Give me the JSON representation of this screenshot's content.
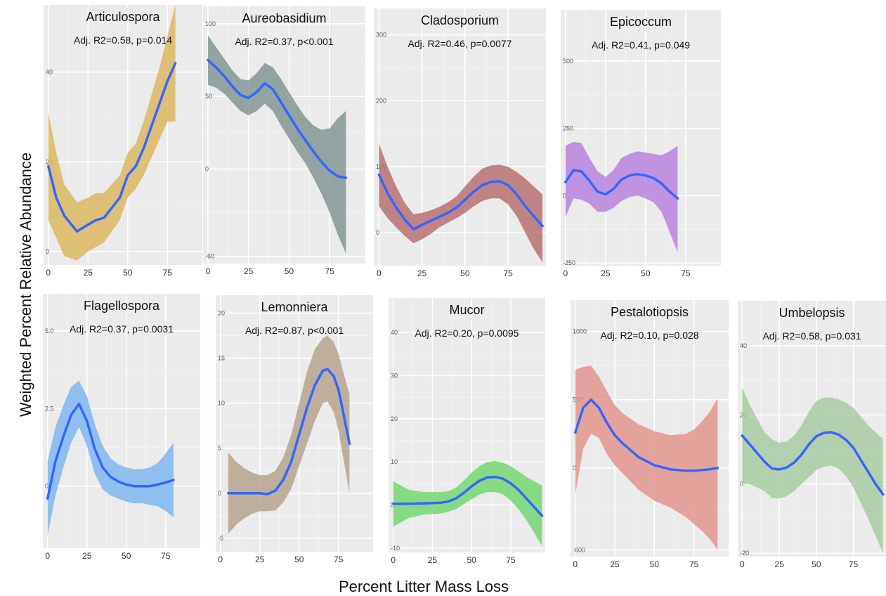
{
  "figure": {
    "ylabel": "Weighted Percent Relative Abundance",
    "xlabel": "Percent Litter Mass Loss"
  },
  "chart_data": [
    {
      "type": "line",
      "title": "Articulospora",
      "annotation": "Adj. R2=0.58, p=0.014",
      "color": "#d9b45c",
      "xlim": [
        -3,
        97
      ],
      "ylim": [
        -3,
        55
      ],
      "xticks": [
        0,
        25,
        50,
        75
      ],
      "yticks": [
        0,
        20,
        40
      ],
      "x": [
        0,
        5,
        10,
        18,
        25,
        30,
        35,
        45,
        50,
        55,
        60,
        65,
        70,
        75,
        80
      ],
      "y": [
        19,
        12,
        8,
        4.5,
        6,
        7,
        7.5,
        12,
        17,
        19,
        23,
        28,
        33,
        38,
        42
      ],
      "band_upper": [
        31,
        22,
        15,
        11,
        12,
        13,
        13,
        17,
        22,
        24,
        29,
        35,
        41,
        48,
        55
      ],
      "band_lower": [
        7,
        3,
        -1,
        -2,
        0,
        1,
        2,
        7,
        12,
        14,
        17,
        21,
        25,
        29,
        29
      ]
    },
    {
      "type": "line",
      "title": "Aureobasidium",
      "annotation": "Adj. R2=0.37, p<0.001",
      "color": "#7e9391",
      "xlim": [
        -3,
        97
      ],
      "ylim": [
        -65,
        112
      ],
      "xticks": [
        0,
        25,
        50,
        75
      ],
      "yticks": [
        -60,
        0,
        50,
        100
      ],
      "x": [
        0,
        5,
        10,
        15,
        20,
        25,
        30,
        35,
        40,
        45,
        50,
        55,
        60,
        65,
        70,
        75,
        80,
        85
      ],
      "y": [
        75,
        70,
        64,
        57,
        51,
        49,
        53,
        59,
        55,
        46,
        37,
        28,
        20,
        12,
        5,
        -1,
        -5,
        -6
      ],
      "band_upper": [
        92,
        84,
        76,
        68,
        62,
        61,
        66,
        73,
        70,
        62,
        53,
        44,
        36,
        30,
        27,
        28,
        35,
        40
      ],
      "band_lower": [
        58,
        56,
        52,
        46,
        40,
        37,
        40,
        45,
        40,
        30,
        21,
        12,
        4,
        -6,
        -17,
        -30,
        -45,
        -58
      ]
    },
    {
      "type": "line",
      "title": "Cladosporium",
      "annotation": "Adj. R2=0.46, p=0.0077",
      "color": "#b66b6b",
      "xlim": [
        -3,
        97
      ],
      "ylim": [
        -50,
        340
      ],
      "xticks": [
        0,
        25,
        50,
        75
      ],
      "yticks": [
        0,
        100,
        200,
        300
      ],
      "x": [
        0,
        5,
        10,
        15,
        20,
        25,
        30,
        35,
        40,
        45,
        50,
        55,
        60,
        65,
        70,
        75,
        80,
        85,
        90,
        95
      ],
      "y": [
        88,
        60,
        38,
        20,
        5,
        12,
        18,
        24,
        30,
        38,
        50,
        62,
        72,
        77,
        78,
        72,
        58,
        40,
        25,
        10
      ],
      "band_upper": [
        135,
        100,
        70,
        45,
        28,
        30,
        34,
        39,
        46,
        55,
        70,
        85,
        97,
        102,
        103,
        100,
        92,
        82,
        70,
        58
      ],
      "band_lower": [
        40,
        22,
        8,
        -5,
        -16,
        -10,
        -2,
        8,
        15,
        22,
        30,
        40,
        48,
        52,
        52,
        43,
        25,
        0,
        -25,
        -45
      ]
    },
    {
      "type": "line",
      "title": "Epicoccum",
      "annotation": "Adj. R2=0.41, p=0.049",
      "color": "#b67fde",
      "xlim": [
        -3,
        97
      ],
      "ylim": [
        -260,
        690
      ],
      "xticks": [
        0,
        25,
        50,
        75
      ],
      "yticks": [
        -250,
        0,
        250,
        500
      ],
      "x": [
        0,
        5,
        10,
        15,
        20,
        25,
        30,
        35,
        40,
        45,
        50,
        55,
        60,
        65,
        70
      ],
      "y": [
        50,
        95,
        90,
        55,
        15,
        5,
        25,
        60,
        75,
        80,
        75,
        65,
        45,
        15,
        -10
      ],
      "band_upper": [
        185,
        200,
        195,
        140,
        90,
        70,
        95,
        140,
        155,
        165,
        160,
        155,
        150,
        165,
        185
      ],
      "band_lower": [
        -80,
        -10,
        -15,
        -30,
        -60,
        -60,
        -45,
        -20,
        -5,
        0,
        -10,
        -25,
        -60,
        -135,
        -210
      ]
    },
    {
      "type": "line",
      "title": "Flagellospora",
      "annotation": "Adj. R2=0.37, p=0.0031",
      "color": "#7ab4ef",
      "xlim": [
        -3,
        97
      ],
      "ylim": [
        -2,
        6.2
      ],
      "xticks": [
        0,
        25,
        50,
        75
      ],
      "yticks": [
        0.0,
        2.5,
        5.0
      ],
      "yticklabels": [
        "0.0",
        "2.5",
        "5.0"
      ],
      "x": [
        0,
        5,
        10,
        15,
        20,
        25,
        30,
        35,
        40,
        45,
        50,
        55,
        60,
        65,
        70,
        75,
        80
      ],
      "y": [
        -0.4,
        0.8,
        1.6,
        2.3,
        2.65,
        2.1,
        1.2,
        0.6,
        0.3,
        0.15,
        0.05,
        0.0,
        0.0,
        0.0,
        0.05,
        0.12,
        0.2
      ],
      "band_upper": [
        0.8,
        1.9,
        2.6,
        3.2,
        3.4,
        2.9,
        2.0,
        1.3,
        0.9,
        0.7,
        0.6,
        0.55,
        0.55,
        0.6,
        0.75,
        1.05,
        1.4
      ],
      "band_lower": [
        -1.6,
        -0.3,
        0.6,
        1.4,
        1.9,
        1.3,
        0.4,
        -0.1,
        -0.3,
        -0.4,
        -0.5,
        -0.55,
        -0.55,
        -0.6,
        -0.65,
        -0.8,
        -1.0
      ]
    },
    {
      "type": "line",
      "title": "Lemonniera",
      "annotation": "Adj. R2=0.87, p<0.001",
      "color": "#b3a08a",
      "xlim": [
        -3,
        97
      ],
      "ylim": [
        -6.5,
        22
      ],
      "xticks": [
        0,
        25,
        50,
        75
      ],
      "yticks": [
        -5,
        0,
        5,
        10,
        15,
        20
      ],
      "x": [
        5,
        10,
        15,
        20,
        25,
        30,
        35,
        40,
        45,
        50,
        55,
        60,
        65,
        68,
        72,
        75,
        78,
        82
      ],
      "y": [
        0,
        0,
        0,
        0,
        0,
        -0.1,
        0.3,
        1.5,
        3.5,
        6.5,
        9.5,
        12,
        13.6,
        13.8,
        13,
        11.5,
        9,
        5.5
      ],
      "band_upper": [
        4.5,
        3.5,
        2.8,
        2.3,
        2,
        2,
        2.5,
        4,
        6.5,
        10,
        13.5,
        16,
        17.2,
        17.5,
        16.8,
        15.5,
        13.5,
        11
      ],
      "band_lower": [
        -4.5,
        -3.5,
        -2.8,
        -2.3,
        -2,
        -2,
        -1.9,
        -1,
        0.5,
        3,
        5.5,
        8,
        10,
        10.2,
        9,
        7,
        4,
        0
      ]
    },
    {
      "type": "line",
      "title": "Mucor",
      "annotation": "Adj. R2=0.20, p=0.0095",
      "color": "#6fd66c",
      "xlim": [
        -3,
        97
      ],
      "ylim": [
        -11,
        48
      ],
      "xticks": [
        0,
        25,
        50,
        75
      ],
      "yticks": [
        -10,
        0,
        10,
        20,
        30,
        40
      ],
      "x": [
        0,
        10,
        20,
        30,
        35,
        40,
        45,
        50,
        55,
        60,
        65,
        70,
        75,
        80,
        85,
        90,
        95
      ],
      "y": [
        0.3,
        0.3,
        0.4,
        0.5,
        0.8,
        1.5,
        2.8,
        4.3,
        5.6,
        6.4,
        6.5,
        6.1,
        5,
        3.5,
        1.5,
        -0.5,
        -2.5
      ],
      "band_upper": [
        5.5,
        3.5,
        3,
        3,
        3.2,
        4,
        5.6,
        7.5,
        9,
        10,
        10.2,
        9.8,
        9,
        7.8,
        6.5,
        5.5,
        4.5
      ],
      "band_lower": [
        -5,
        -3,
        -2.2,
        -2,
        -1.6,
        -1,
        0.2,
        1.3,
        2.4,
        3,
        3,
        2.5,
        1,
        -1,
        -3.5,
        -6.5,
        -9.5
      ]
    },
    {
      "type": "line",
      "title": "Pestalotiopsis",
      "annotation": "Adj. R2=0.10, p=0.028",
      "color": "#e0938a",
      "xlim": [
        -3,
        97
      ],
      "ylim": [
        -650,
        1230
      ],
      "xticks": [
        0,
        25,
        50,
        75
      ],
      "yticks": [
        -600,
        0,
        500,
        1000
      ],
      "x": [
        0,
        5,
        10,
        15,
        20,
        25,
        30,
        40,
        50,
        60,
        70,
        75,
        80,
        85,
        90
      ],
      "y": [
        260,
        440,
        500,
        440,
        330,
        240,
        180,
        80,
        20,
        -10,
        -20,
        -20,
        -15,
        -10,
        0
      ],
      "band_upper": [
        720,
        740,
        750,
        670,
        560,
        460,
        400,
        320,
        270,
        240,
        250,
        280,
        340,
        410,
        510
      ],
      "band_lower": [
        -190,
        140,
        250,
        220,
        100,
        20,
        -40,
        -160,
        -240,
        -290,
        -360,
        -410,
        -460,
        -520,
        -600
      ]
    },
    {
      "type": "line",
      "title": "Umbelopsis",
      "annotation": "Adj. R2=0.58, p=0.031",
      "color": "#a6c9a0",
      "xlim": [
        -3,
        97
      ],
      "ylim": [
        -21,
        53
      ],
      "xticks": [
        0,
        25,
        50,
        75
      ],
      "yticks": [
        -20,
        0,
        20,
        40
      ],
      "x": [
        0,
        5,
        10,
        15,
        20,
        25,
        30,
        35,
        40,
        45,
        50,
        55,
        60,
        65,
        70,
        75,
        80,
        85,
        90,
        95
      ],
      "y": [
        14,
        11.5,
        9,
        6.5,
        4.5,
        4.2,
        4.8,
        6.2,
        8.5,
        11.5,
        13.8,
        14.8,
        15,
        14.3,
        12.8,
        10.5,
        7,
        3.5,
        0,
        -3
      ],
      "band_upper": [
        28,
        23,
        19,
        15,
        13,
        12,
        12.3,
        14,
        17,
        21,
        24,
        25,
        25,
        24.5,
        23.5,
        22,
        19.5,
        17,
        15,
        13
      ],
      "band_lower": [
        0,
        0,
        -1,
        -2,
        -4,
        -4.2,
        -3.5,
        -2,
        0,
        2,
        4,
        5,
        5.3,
        4.5,
        2.3,
        -1,
        -5.5,
        -10,
        -15,
        -20
      ]
    }
  ]
}
